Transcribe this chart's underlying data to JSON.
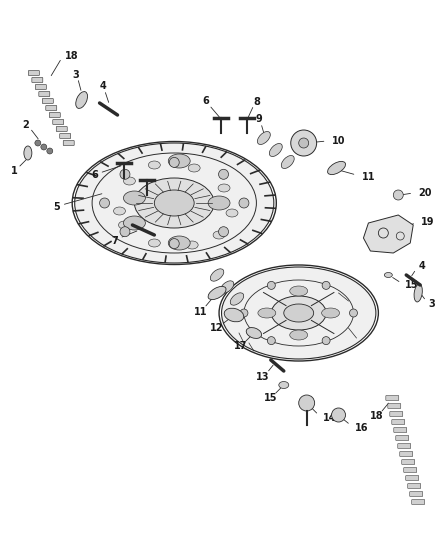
{
  "background_color": "#ffffff",
  "fig_width": 4.38,
  "fig_height": 5.33,
  "dpi": 100,
  "line_color": "#2a2a2a",
  "text_color": "#1a1a1a",
  "label_fontsize": 7.0,
  "img_path": null
}
